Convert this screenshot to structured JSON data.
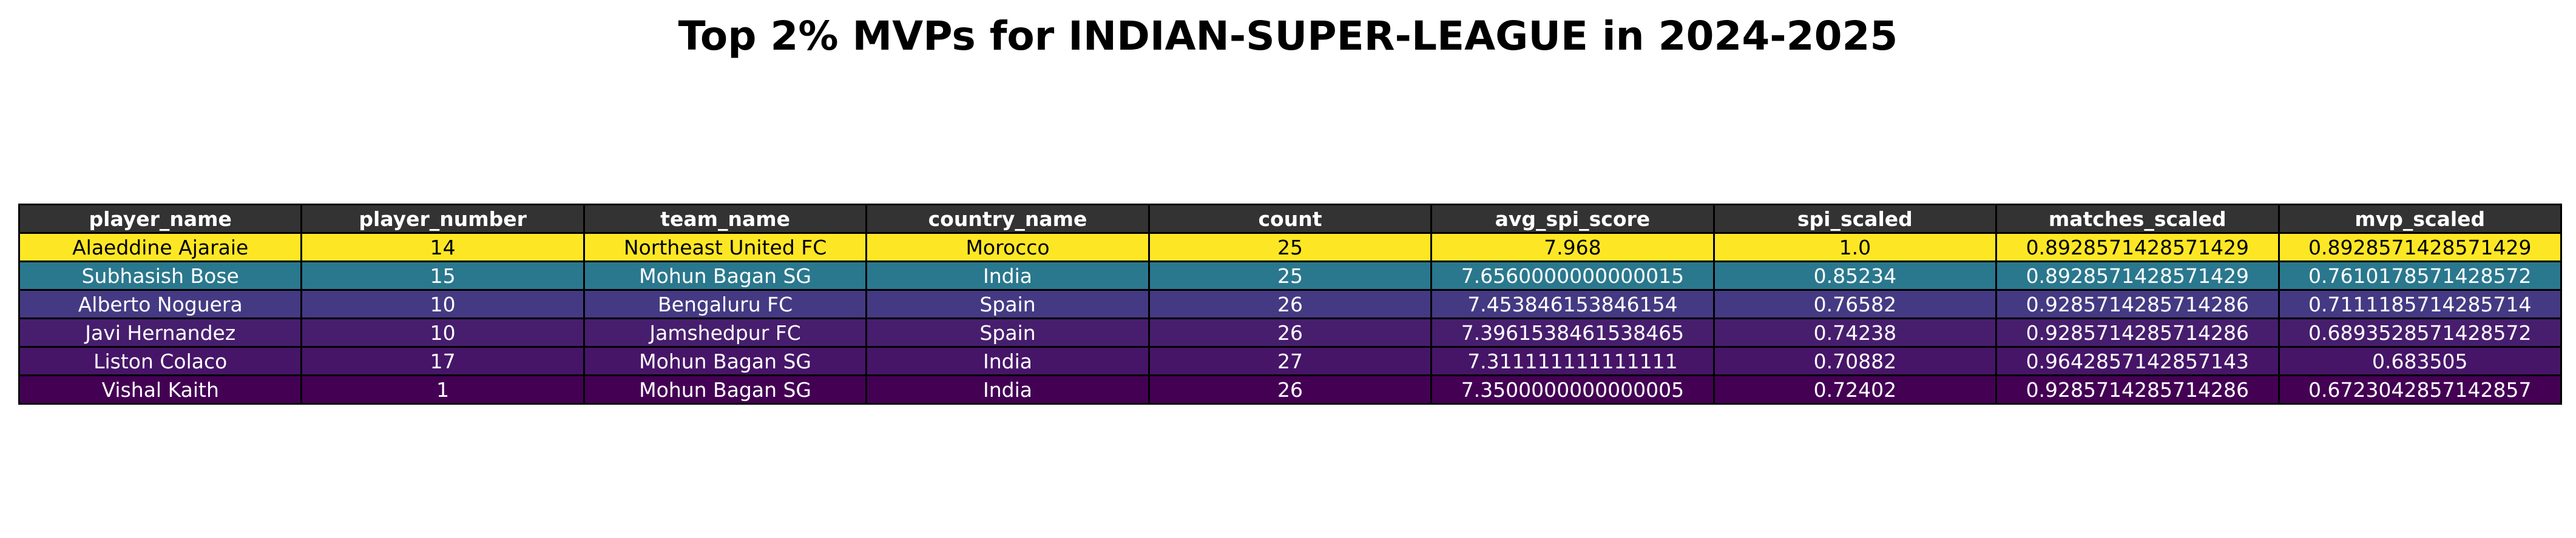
{
  "colors": {
    "header_bg": "#333333",
    "header_text": "#ffffff",
    "border": "#000000",
    "row_backgrounds": [
      "#fde725",
      "#2a788e",
      "#443a83",
      "#471e6e",
      "#461568",
      "#440154"
    ],
    "row_text": [
      "#000000",
      "#ffffff",
      "#ffffff",
      "#ffffff",
      "#ffffff",
      "#ffffff"
    ]
  },
  "chart_data": {
    "type": "table",
    "title": "Top 2% MVPs for INDIAN-SUPER-LEAGUE in 2024-2025",
    "columns": [
      "player_name",
      "player_number",
      "team_name",
      "country_name",
      "count",
      "avg_spi_score",
      "spi_scaled",
      "matches_scaled",
      "mvp_scaled"
    ],
    "rows": [
      [
        "Alaeddine Ajaraie",
        "14",
        "Northeast United FC",
        "Morocco",
        "25",
        "7.968",
        "1.0",
        "0.8928571428571429",
        "0.8928571428571429"
      ],
      [
        "Subhasish Bose",
        "15",
        "Mohun Bagan SG",
        "India",
        "25",
        "7.6560000000000015",
        "0.85234",
        "0.8928571428571429",
        "0.7610178571428572"
      ],
      [
        "Alberto Noguera",
        "10",
        "Bengaluru FC",
        "Spain",
        "26",
        "7.453846153846154",
        "0.76582",
        "0.9285714285714286",
        "0.7111185714285714"
      ],
      [
        "Javi Hernandez",
        "10",
        "Jamshedpur FC",
        "Spain",
        "26",
        "7.3961538461538465",
        "0.74238",
        "0.9285714285714286",
        "0.6893528571428572"
      ],
      [
        "Liston Colaco",
        "17",
        "Mohun Bagan SG",
        "India",
        "27",
        "7.311111111111111",
        "0.70882",
        "0.9642857142857143",
        "0.683505"
      ],
      [
        "Vishal Kaith",
        "1",
        "Mohun Bagan SG",
        "India",
        "26",
        "7.3500000000000005",
        "0.72402",
        "0.9285714285714286",
        "0.6723042857142857"
      ]
    ]
  }
}
